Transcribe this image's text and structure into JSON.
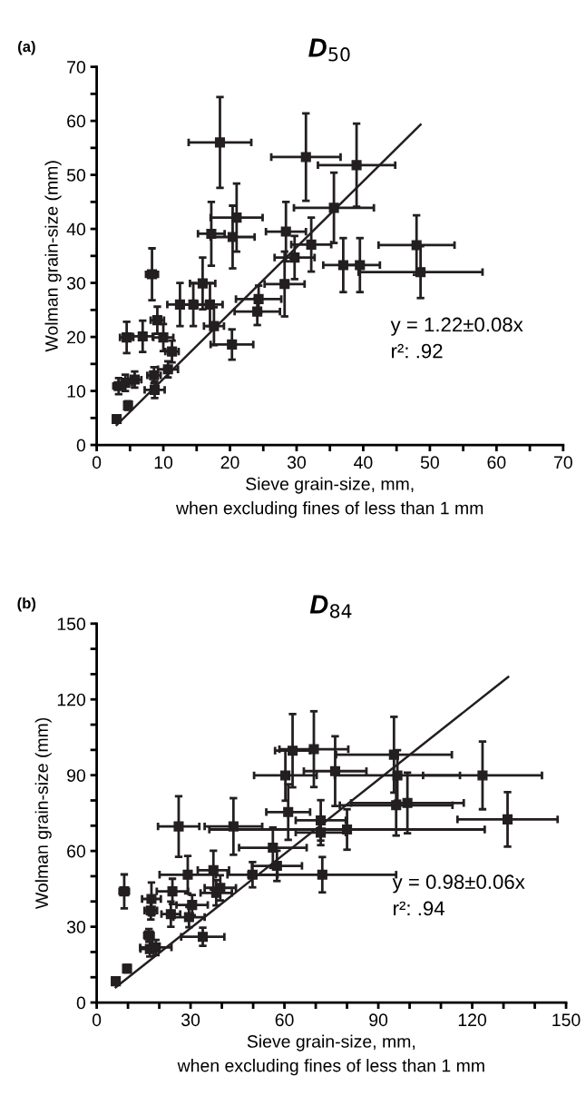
{
  "chart_data": [
    {
      "type": "scatter",
      "title": "D$_{50}$",
      "xlabel": "Sieve grain-size, mm,\nwhen excluding fines of less than 1 mm",
      "ylabel": "Wolman grain-size (mm)",
      "annotations": [
        "(a)",
        "y = 1.22±0.08x",
        "r²: .92"
      ],
      "xlim": [
        0,
        70
      ],
      "ylim": [
        0,
        70
      ],
      "xticks": [
        0,
        {
          "value": 5,
          "label": null
        },
        10,
        {
          "value": 15,
          "label": null
        },
        20,
        {
          "value": 25,
          "label": null
        },
        30,
        {
          "value": 35,
          "label": null
        },
        40,
        {
          "value": 45,
          "label": null
        },
        50,
        {
          "value": 55,
          "label": null
        },
        60,
        {
          "value": 65,
          "label": null
        },
        70
      ],
      "yticks": [
        0,
        {
          "value": 5,
          "label": null
        },
        10,
        {
          "value": 15,
          "label": null
        },
        20,
        {
          "value": 25,
          "label": null
        },
        30,
        {
          "value": 35,
          "label": null
        },
        40,
        {
          "value": 45,
          "label": null
        },
        50,
        {
          "value": 55,
          "label": null
        },
        60,
        {
          "value": 65,
          "label": null
        },
        70
      ],
      "grid": false,
      "legend": false,
      "series": [
        {
          "type": "scatter",
          "color": "#231f20",
          "marker": "square",
          "x": [
            3.0,
            4.7,
            3.3,
            4.3,
            5.7,
            8.6,
            8.7,
            10.7,
            11.3,
            4.5,
            6.9,
            9.1,
            10.0,
            8.3,
            12.5,
            14.5,
            15.9,
            17.0,
            17.6,
            20.3,
            17.2,
            20.4,
            21.0,
            18.5,
            31.4,
            28.4,
            29.7,
            28.2,
            24.3,
            24.1,
            39.0,
            35.6,
            32.2,
            37.0,
            39.5,
            48.0,
            48.6
          ],
          "values": [
            4.8,
            7.3,
            10.9,
            11.5,
            12.1,
            12.9,
            10.2,
            14.0,
            17.3,
            19.9,
            20.1,
            23.1,
            19.9,
            31.6,
            26.0,
            26.0,
            29.9,
            26.0,
            22.0,
            18.6,
            39.1,
            38.5,
            42.1,
            56.0,
            53.3,
            39.5,
            34.7,
            29.8,
            27.0,
            24.7,
            51.8,
            43.9,
            37.1,
            33.3,
            33.3,
            37.0,
            32.0
          ],
          "errors": [
            0.5,
            0.8,
            1.5,
            1.5,
            1.5,
            1.5,
            1.5,
            1.5,
            2.0,
            2.9,
            2.9,
            2.5,
            2.5,
            4.8,
            4.0,
            4.0,
            4.8,
            4.0,
            3.5,
            2.8,
            5.9,
            5.8,
            6.3,
            8.4,
            8.1,
            5.5,
            4.0,
            6.0,
            2.5,
            2.5,
            7.7,
            6.5,
            5.0,
            5.0,
            5.0,
            5.5,
            4.8
          ],
          "xerrors": [
            0.5,
            0.5,
            0.8,
            1.0,
            1.0,
            1.0,
            1.5,
            1.5,
            1.0,
            1.0,
            1.5,
            1.0,
            1.5,
            0.9,
            1.9,
            1.9,
            1.9,
            1.9,
            1.5,
            3.2,
            2.0,
            3.3,
            3.9,
            4.7,
            5.2,
            3.0,
            3.0,
            3.0,
            3.4,
            3.4,
            5.8,
            6.0,
            3.0,
            3.0,
            3.0,
            5.7,
            9.3
          ]
        },
        {
          "type": "line",
          "color": "#231f20",
          "line_style": "solid",
          "x": [
            3.0,
            48.6
          ],
          "values": [
            3.7,
            59.3
          ]
        }
      ]
    },
    {
      "type": "scatter",
      "title": "D$_{84}$",
      "xlabel": "Sieve grain-size, mm,\nwhen excluding fines of less than 1 mm",
      "ylabel": "Wolman grain-size (mm)",
      "annotations": [
        "(b)",
        "y = 0.98±0.06x",
        "r²: .94"
      ],
      "xlim": [
        0,
        150
      ],
      "ylim": [
        0,
        150
      ],
      "xticks": [
        0,
        {
          "value": 10,
          "label": null
        },
        {
          "value": 20,
          "label": null
        },
        30,
        {
          "value": 40,
          "label": null
        },
        {
          "value": 50,
          "label": null
        },
        60,
        {
          "value": 70,
          "label": null
        },
        {
          "value": 80,
          "label": null
        },
        90,
        {
          "value": 100,
          "label": null
        },
        {
          "value": 110,
          "label": null
        },
        120,
        {
          "value": 130,
          "label": null
        },
        {
          "value": 140,
          "label": null
        },
        150
      ],
      "yticks": [
        0,
        {
          "value": 10,
          "label": null
        },
        {
          "value": 20,
          "label": null
        },
        30,
        {
          "value": 40,
          "label": null
        },
        {
          "value": 50,
          "label": null
        },
        60,
        {
          "value": 70,
          "label": null
        },
        {
          "value": 80,
          "label": null
        },
        90,
        {
          "value": 100,
          "label": null
        },
        {
          "value": 110,
          "label": null
        },
        120,
        {
          "value": 130,
          "label": null
        },
        {
          "value": 140,
          "label": null
        },
        150
      ],
      "grid": false,
      "legend": false,
      "series": [
        {
          "type": "scatter",
          "color": "#231f20",
          "marker": "square",
          "x": [
            6.1,
            9.7,
            8.8,
            17.5,
            17.3,
            16.7,
            17.0,
            18.9,
            24.2,
            23.7,
            29.1,
            29.5,
            30.5,
            26.2,
            33.9,
            37.3,
            38.2,
            39.5,
            43.7,
            49.8,
            56.3,
            57.6,
            60.3,
            62.6,
            61.2,
            69.4,
            76.2,
            95.0,
            96.1,
            123.3,
            95.7,
            99.3,
            71.6,
            71.6,
            80.0,
            72.1,
            131.3
          ],
          "values": [
            8.4,
            13.4,
            44.0,
            41.0,
            36.4,
            26.6,
            21.2,
            21.8,
            44.0,
            35.0,
            50.6,
            33.8,
            38.6,
            69.7,
            26.0,
            52.4,
            43.4,
            45.4,
            69.7,
            50.6,
            61.3,
            54.1,
            89.9,
            99.7,
            75.4,
            100.3,
            91.6,
            98.1,
            89.9,
            89.9,
            78.1,
            79.0,
            72.1,
            67.3,
            68.5,
            50.6,
            72.5
          ],
          "errors": [
            1,
            1.5,
            6.7,
            6.5,
            3.5,
            2.5,
            3,
            3,
            5,
            5,
            7.4,
            4,
            4,
            12,
            3.6,
            7.7,
            5,
            5,
            11.2,
            5,
            8,
            6,
            10,
            14.5,
            11,
            15,
            13.8,
            15,
            10,
            13.4,
            12,
            12,
            8,
            5,
            8,
            7,
            10.8
          ],
          "xerrors": [
            1,
            1,
            1.5,
            3,
            2,
            1.5,
            3,
            5,
            5,
            3,
            9,
            5,
            5,
            6.6,
            6.9,
            5,
            5,
            5,
            9.2,
            8,
            10.8,
            8,
            10,
            5.6,
            7,
            11,
            10,
            18.5,
            20,
            19,
            18,
            18,
            8,
            8,
            44,
            23.6,
            16
          ]
        },
        {
          "type": "line",
          "color": "#231f20",
          "line_style": "solid",
          "x": [
            6.1,
            131.5
          ],
          "values": [
            6.0,
            128.9
          ]
        }
      ]
    }
  ]
}
